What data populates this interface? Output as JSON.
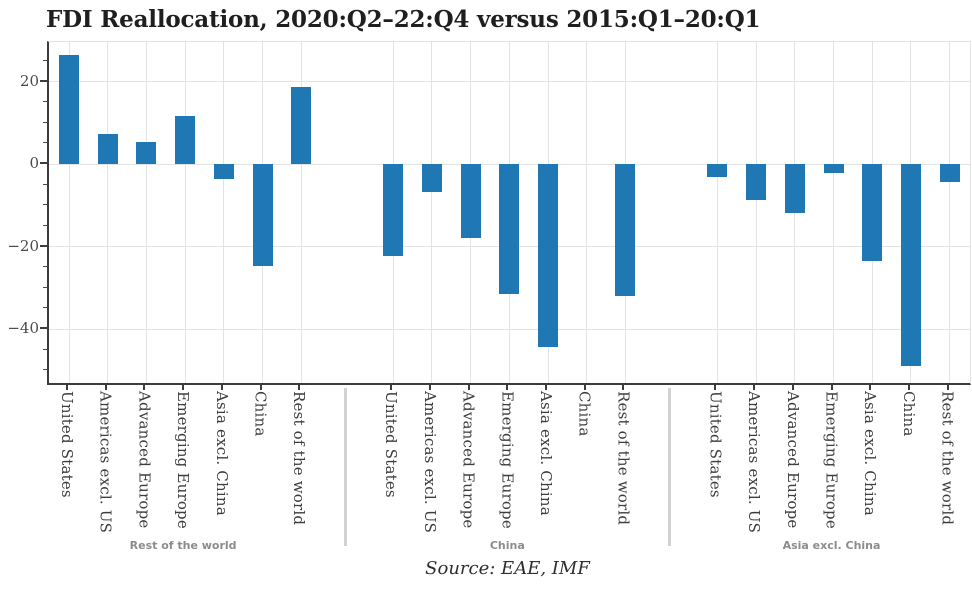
{
  "chart_data": {
    "type": "bar",
    "title": "FDI Reallocation, 2020:Q2–22:Q4 versus 2015:Q1–20:Q1",
    "source_note": "Source: EAE, IMF",
    "xlabel": "",
    "ylabel": "",
    "legend": "none",
    "grid": true,
    "bar_color": "#1f77b4",
    "grid_color": "#e3e3e3",
    "spine_color": "#3c3c3c",
    "group_label_color": "#8c8c8c",
    "ylim": [
      -53,
      29.7
    ],
    "yticks": [
      20,
      0,
      -20,
      -40
    ],
    "minor_tick_step": 5,
    "categories": [
      "United States",
      "Americas excl. US",
      "Advanced Europe",
      "Emerging Europe",
      "Asia excl. China",
      "China",
      "Rest of the world"
    ],
    "groups": [
      {
        "label": "Rest of the world",
        "values": [
          26.5,
          7.3,
          5.5,
          11.7,
          -3.6,
          -24.6,
          18.8
        ]
      },
      {
        "label": "China",
        "values": [
          -22.2,
          -6.8,
          -17.8,
          -31.5,
          -44.2,
          null,
          -31.9
        ]
      },
      {
        "label": "Asia excl. China",
        "values": [
          -3.1,
          -8.7,
          -11.7,
          -2.1,
          -23.4,
          -48.9,
          -4.2
        ]
      }
    ]
  }
}
